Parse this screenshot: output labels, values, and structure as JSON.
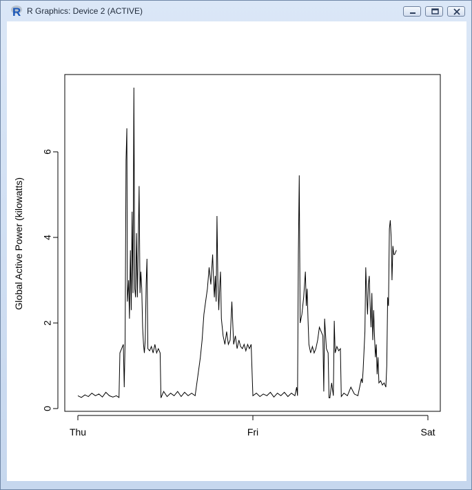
{
  "window": {
    "title": "R Graphics: Device 2 (ACTIVE)",
    "buttons": {
      "minimize": "minimize",
      "restore": "restore",
      "close": "close"
    }
  },
  "colors": {
    "series": "#000000",
    "background": "#ffffff",
    "frame": "#000000"
  },
  "chart_data": {
    "type": "line",
    "title": "",
    "xlabel": "",
    "ylabel": "Global Active Power (kilowatts)",
    "x_ticks": [
      "Thu",
      "Fri",
      "Sat"
    ],
    "x_domain": [
      0,
      2
    ],
    "y_ticks": [
      0,
      2,
      4,
      6
    ],
    "ylim": [
      0,
      7.6
    ],
    "grid": false,
    "series": [
      {
        "points": [
          [
            0.0,
            0.3
          ],
          [
            0.02,
            0.26
          ],
          [
            0.04,
            0.32
          ],
          [
            0.06,
            0.28
          ],
          [
            0.08,
            0.36
          ],
          [
            0.1,
            0.3
          ],
          [
            0.12,
            0.34
          ],
          [
            0.14,
            0.27
          ],
          [
            0.16,
            0.38
          ],
          [
            0.18,
            0.3
          ],
          [
            0.2,
            0.27
          ],
          [
            0.22,
            0.3
          ],
          [
            0.235,
            0.26
          ],
          [
            0.24,
            1.3
          ],
          [
            0.25,
            1.4
          ],
          [
            0.26,
            1.5
          ],
          [
            0.265,
            0.5
          ],
          [
            0.27,
            1.6
          ],
          [
            0.275,
            5.8
          ],
          [
            0.28,
            6.55
          ],
          [
            0.283,
            2.5
          ],
          [
            0.29,
            3.0
          ],
          [
            0.295,
            2.1
          ],
          [
            0.3,
            3.7
          ],
          [
            0.305,
            2.3
          ],
          [
            0.31,
            4.6
          ],
          [
            0.315,
            2.7
          ],
          [
            0.32,
            7.5
          ],
          [
            0.325,
            2.8
          ],
          [
            0.33,
            2.6
          ],
          [
            0.335,
            4.1
          ],
          [
            0.34,
            2.6
          ],
          [
            0.345,
            3.8
          ],
          [
            0.35,
            5.2
          ],
          [
            0.355,
            2.7
          ],
          [
            0.36,
            3.2
          ],
          [
            0.365,
            2.8
          ],
          [
            0.37,
            1.9
          ],
          [
            0.375,
            1.5
          ],
          [
            0.38,
            1.3
          ],
          [
            0.385,
            1.6
          ],
          [
            0.39,
            2.9
          ],
          [
            0.395,
            3.5
          ],
          [
            0.4,
            1.4
          ],
          [
            0.41,
            1.35
          ],
          [
            0.42,
            1.45
          ],
          [
            0.43,
            1.3
          ],
          [
            0.44,
            1.5
          ],
          [
            0.45,
            1.3
          ],
          [
            0.46,
            1.4
          ],
          [
            0.47,
            1.3
          ],
          [
            0.475,
            0.25
          ],
          [
            0.49,
            0.4
          ],
          [
            0.51,
            0.28
          ],
          [
            0.53,
            0.36
          ],
          [
            0.55,
            0.3
          ],
          [
            0.57,
            0.4
          ],
          [
            0.59,
            0.28
          ],
          [
            0.61,
            0.38
          ],
          [
            0.63,
            0.3
          ],
          [
            0.65,
            0.36
          ],
          [
            0.67,
            0.3
          ],
          [
            0.69,
            0.9
          ],
          [
            0.7,
            1.2
          ],
          [
            0.71,
            1.6
          ],
          [
            0.72,
            2.2
          ],
          [
            0.73,
            2.5
          ],
          [
            0.74,
            2.8
          ],
          [
            0.75,
            3.3
          ],
          [
            0.76,
            2.9
          ],
          [
            0.77,
            3.6
          ],
          [
            0.775,
            3.0
          ],
          [
            0.78,
            2.6
          ],
          [
            0.785,
            3.1
          ],
          [
            0.79,
            2.5
          ],
          [
            0.795,
            4.5
          ],
          [
            0.8,
            3.0
          ],
          [
            0.805,
            2.3
          ],
          [
            0.81,
            2.8
          ],
          [
            0.815,
            3.2
          ],
          [
            0.82,
            2.1
          ],
          [
            0.83,
            1.7
          ],
          [
            0.84,
            1.5
          ],
          [
            0.85,
            1.8
          ],
          [
            0.86,
            1.5
          ],
          [
            0.87,
            1.6
          ],
          [
            0.88,
            2.5
          ],
          [
            0.89,
            1.5
          ],
          [
            0.9,
            1.7
          ],
          [
            0.91,
            1.4
          ],
          [
            0.92,
            1.6
          ],
          [
            0.93,
            1.45
          ],
          [
            0.94,
            1.4
          ],
          [
            0.95,
            1.5
          ],
          [
            0.96,
            1.35
          ],
          [
            0.97,
            1.5
          ],
          [
            0.98,
            1.4
          ],
          [
            0.99,
            1.5
          ],
          [
            1.0,
            0.3
          ],
          [
            1.02,
            0.36
          ],
          [
            1.04,
            0.28
          ],
          [
            1.06,
            0.34
          ],
          [
            1.08,
            0.3
          ],
          [
            1.1,
            0.38
          ],
          [
            1.12,
            0.27
          ],
          [
            1.14,
            0.36
          ],
          [
            1.16,
            0.3
          ],
          [
            1.18,
            0.38
          ],
          [
            1.2,
            0.28
          ],
          [
            1.22,
            0.36
          ],
          [
            1.24,
            0.3
          ],
          [
            1.25,
            0.5
          ],
          [
            1.255,
            0.3
          ],
          [
            1.26,
            3.6
          ],
          [
            1.265,
            5.45
          ],
          [
            1.27,
            2.0
          ],
          [
            1.28,
            2.2
          ],
          [
            1.29,
            2.6
          ],
          [
            1.3,
            3.2
          ],
          [
            1.305,
            2.4
          ],
          [
            1.31,
            2.8
          ],
          [
            1.315,
            2.1
          ],
          [
            1.32,
            1.5
          ],
          [
            1.33,
            1.3
          ],
          [
            1.34,
            1.45
          ],
          [
            1.35,
            1.3
          ],
          [
            1.36,
            1.4
          ],
          [
            1.37,
            1.6
          ],
          [
            1.38,
            1.9
          ],
          [
            1.39,
            1.8
          ],
          [
            1.4,
            1.7
          ],
          [
            1.405,
            0.4
          ],
          [
            1.41,
            2.1
          ],
          [
            1.42,
            1.4
          ],
          [
            1.43,
            1.3
          ],
          [
            1.435,
            0.25
          ],
          [
            1.44,
            0.25
          ],
          [
            1.45,
            0.6
          ],
          [
            1.46,
            0.3
          ],
          [
            1.465,
            2.05
          ],
          [
            1.47,
            1.3
          ],
          [
            1.48,
            1.45
          ],
          [
            1.49,
            1.35
          ],
          [
            1.5,
            1.4
          ],
          [
            1.505,
            0.28
          ],
          [
            1.52,
            0.36
          ],
          [
            1.54,
            0.3
          ],
          [
            1.56,
            0.5
          ],
          [
            1.58,
            0.34
          ],
          [
            1.6,
            0.3
          ],
          [
            1.62,
            0.7
          ],
          [
            1.625,
            0.6
          ],
          [
            1.63,
            0.9
          ],
          [
            1.64,
            1.8
          ],
          [
            1.645,
            3.3
          ],
          [
            1.65,
            2.7
          ],
          [
            1.655,
            2.2
          ],
          [
            1.66,
            2.9
          ],
          [
            1.665,
            3.1
          ],
          [
            1.67,
            2.4
          ],
          [
            1.675,
            1.9
          ],
          [
            1.68,
            2.7
          ],
          [
            1.685,
            1.6
          ],
          [
            1.69,
            2.3
          ],
          [
            1.695,
            1.7
          ],
          [
            1.7,
            1.2
          ],
          [
            1.705,
            1.5
          ],
          [
            1.71,
            0.8
          ],
          [
            1.715,
            1.2
          ],
          [
            1.72,
            0.6
          ],
          [
            1.73,
            0.65
          ],
          [
            1.74,
            0.55
          ],
          [
            1.75,
            0.6
          ],
          [
            1.76,
            0.5
          ],
          [
            1.765,
            1.0
          ],
          [
            1.77,
            2.6
          ],
          [
            1.775,
            2.4
          ],
          [
            1.78,
            4.2
          ],
          [
            1.785,
            4.4
          ],
          [
            1.79,
            4.0
          ],
          [
            1.795,
            3.0
          ],
          [
            1.8,
            3.8
          ],
          [
            1.805,
            3.6
          ],
          [
            1.81,
            3.6
          ],
          [
            1.82,
            3.7
          ]
        ]
      }
    ]
  }
}
